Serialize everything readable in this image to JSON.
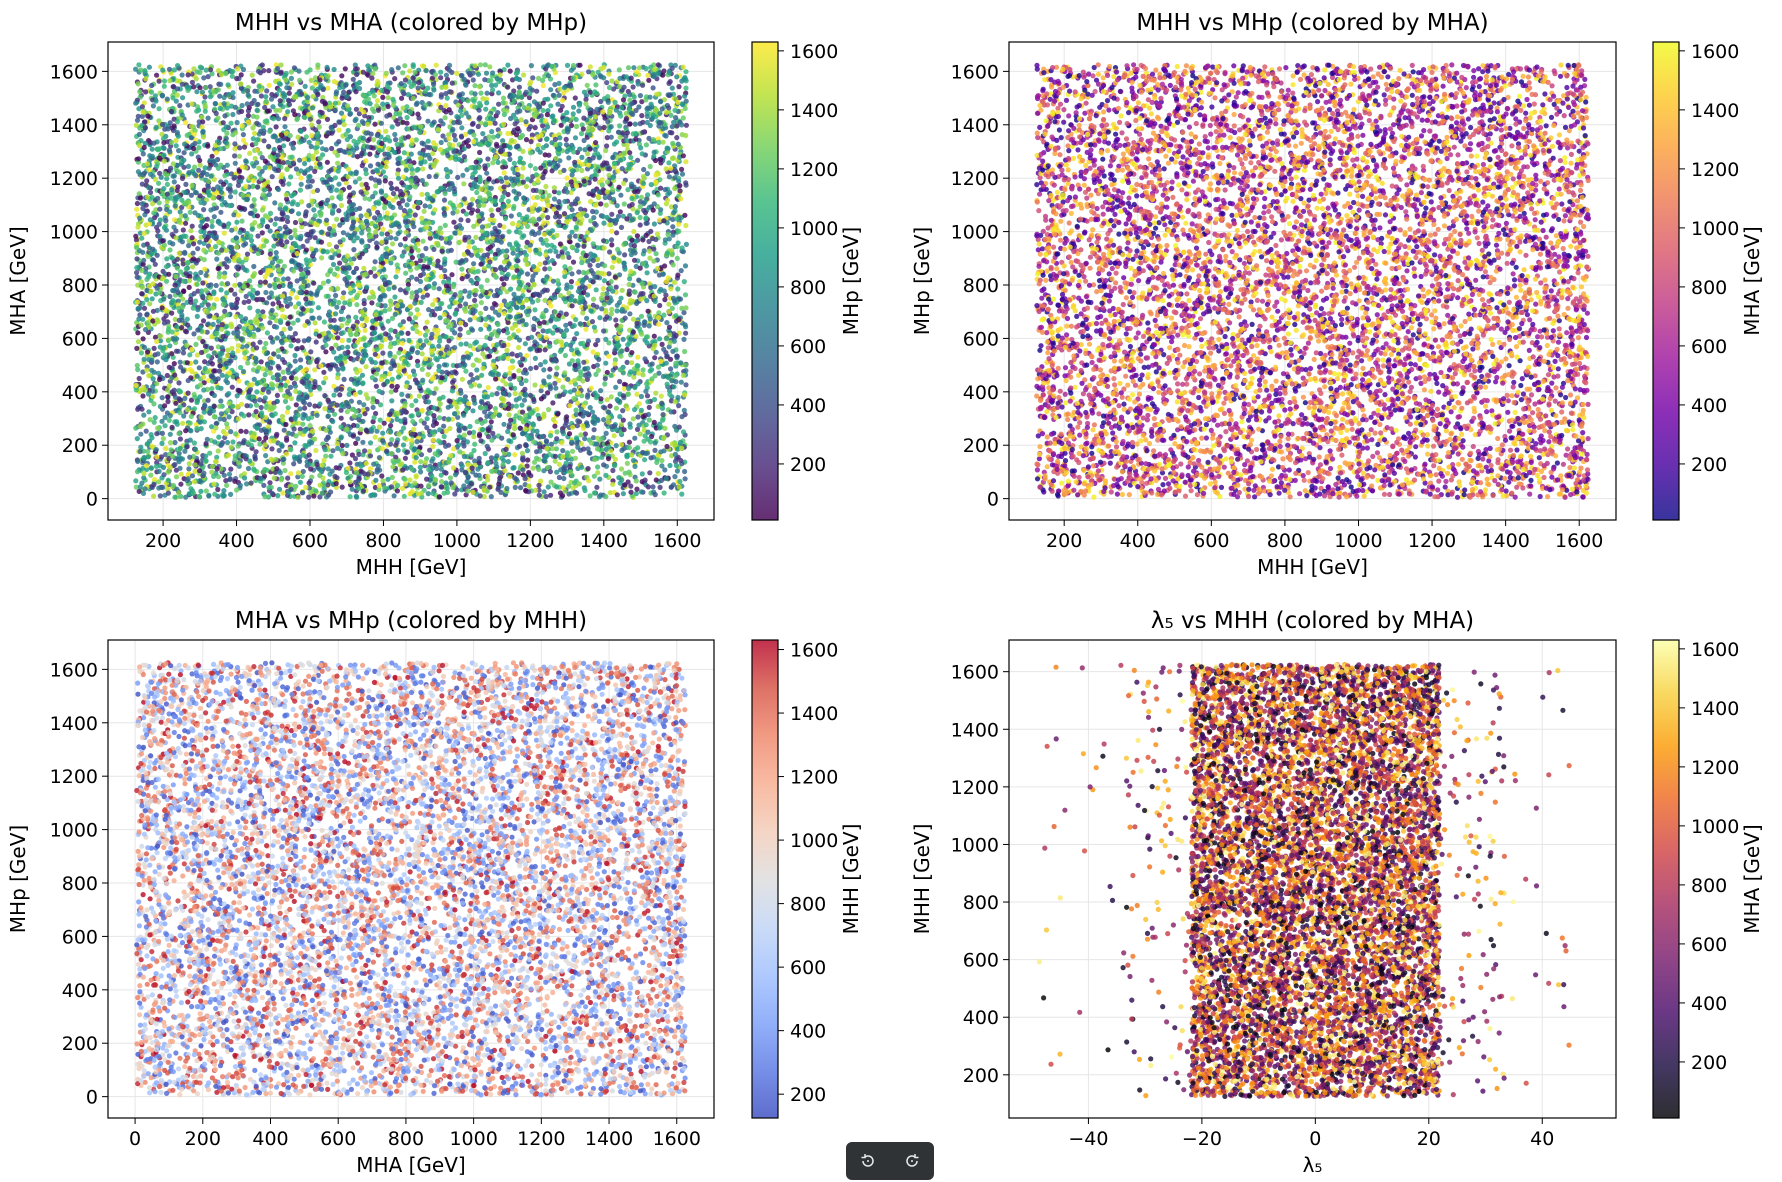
{
  "chart_data": [
    {
      "type": "scatter",
      "title": "MHH vs MHA (colored by MHp)",
      "xlabel": "MHH [GeV]",
      "ylabel": "MHA [GeV]",
      "colorbar_label": "MHp [GeV]",
      "colormap": "viridis",
      "xlim": [
        50,
        1700
      ],
      "ylim": [
        -80,
        1710
      ],
      "clim": [
        10,
        1630
      ],
      "xticks": [
        200,
        400,
        600,
        800,
        1000,
        1200,
        1400,
        1600
      ],
      "yticks": [
        0,
        200,
        400,
        600,
        800,
        1000,
        1200,
        1400,
        1600
      ],
      "cticks": [
        200,
        400,
        600,
        800,
        1000,
        1200,
        1400,
        1600
      ],
      "x_range": [
        125,
        1625
      ],
      "y_range": [
        5,
        1625
      ],
      "c_range": [
        10,
        1625
      ],
      "grid": true,
      "point_count": 9000
    },
    {
      "type": "scatter",
      "title": "MHH vs MHp (colored by MHA)",
      "xlabel": "MHH [GeV]",
      "ylabel": "MHp [GeV]",
      "colorbar_label": "MHA [GeV]",
      "colormap": "plasma",
      "xlim": [
        50,
        1700
      ],
      "ylim": [
        -80,
        1710
      ],
      "clim": [
        10,
        1630
      ],
      "xticks": [
        200,
        400,
        600,
        800,
        1000,
        1200,
        1400,
        1600
      ],
      "yticks": [
        0,
        200,
        400,
        600,
        800,
        1000,
        1200,
        1400,
        1600
      ],
      "cticks": [
        200,
        400,
        600,
        800,
        1000,
        1200,
        1400,
        1600
      ],
      "x_range": [
        125,
        1625
      ],
      "y_range": [
        5,
        1625
      ],
      "c_range": [
        10,
        1625
      ],
      "grid": true,
      "point_count": 9000
    },
    {
      "type": "scatter",
      "title": "MHA vs MHp (colored by MHH)",
      "xlabel": "MHA [GeV]",
      "ylabel": "MHp [GeV]",
      "colorbar_label": "MHH [GeV]",
      "colormap": "coolwarm",
      "xlim": [
        -80,
        1710
      ],
      "ylim": [
        -80,
        1710
      ],
      "clim": [
        125,
        1630
      ],
      "xticks": [
        0,
        200,
        400,
        600,
        800,
        1000,
        1200,
        1400,
        1600
      ],
      "yticks": [
        0,
        200,
        400,
        600,
        800,
        1000,
        1200,
        1400,
        1600
      ],
      "cticks": [
        200,
        400,
        600,
        800,
        1000,
        1200,
        1400,
        1600
      ],
      "x_range": [
        5,
        1625
      ],
      "y_range": [
        5,
        1625
      ],
      "c_range": [
        125,
        1625
      ],
      "grid": true,
      "point_count": 9000
    },
    {
      "type": "scatter",
      "title": "λ₅ vs MHH (colored by MHA)",
      "xlabel": "λ₅",
      "ylabel": "MHH [GeV]",
      "colorbar_label": "MHA [GeV]",
      "colormap": "inferno",
      "xlim": [
        -54,
        53
      ],
      "ylim": [
        50,
        1710
      ],
      "clim": [
        10,
        1630
      ],
      "xticks": [
        -40,
        -20,
        0,
        20,
        40
      ],
      "yticks": [
        200,
        400,
        600,
        800,
        1000,
        1200,
        1400,
        1600
      ],
      "cticks": [
        200,
        400,
        600,
        800,
        1000,
        1200,
        1400,
        1600
      ],
      "x_distribution": {
        "center": 0,
        "core_halfwidth": 23,
        "extreme_min": -49,
        "extreme_max": 47
      },
      "y_range": [
        125,
        1625
      ],
      "c_range": [
        10,
        1625
      ],
      "grid": true,
      "point_count": 9000
    }
  ],
  "toolbar": {
    "buttons": [
      {
        "icon": "rotate-left-icon"
      },
      {
        "icon": "rotate-right-icon"
      }
    ]
  }
}
